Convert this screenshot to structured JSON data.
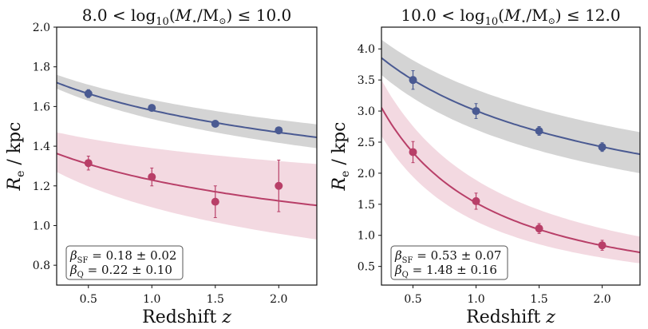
{
  "chart_data": [
    {
      "type": "line",
      "title": {
        "prefix": "8.0 < log",
        "sub": "10",
        "mid": "(",
        "m": "M",
        "star": "⋆",
        "rest": "/M",
        "sun": "⊙",
        "end": ") ≤ 10.0"
      },
      "xlabel": {
        "text": "Redshift ",
        "var": "z"
      },
      "ylabel": {
        "var": "R",
        "sub": "e",
        "unit": " / kpc"
      },
      "xlim": [
        0.25,
        2.3
      ],
      "ylim": [
        0.7,
        2.0
      ],
      "xticks": [
        "0.5",
        "1.0",
        "1.5",
        "2.0"
      ],
      "yticks": [
        "0.8",
        "1.0",
        "1.2",
        "1.4",
        "1.6",
        "1.8",
        "2.0"
      ],
      "grid": false,
      "legend_placement": "bottom-left",
      "legend": [
        {
          "symbol": "β",
          "sub": "SF",
          "text": " = 0.18 ± 0.02"
        },
        {
          "symbol": "β",
          "sub": "Q",
          "text": " = 0.22 ± 0.10"
        }
      ],
      "series": [
        {
          "group": "SF",
          "color": "#4a5a92",
          "band_color": "#d4d4d4",
          "fit": {
            "A": 1.791,
            "beta": 0.18
          },
          "band": {
            "x": [
              0.25,
              2.3
            ],
            "lower": [
              1.69,
              1.39
            ],
            "upper": [
              1.76,
              1.51
            ]
          },
          "x": [
            0.5,
            1.0,
            1.5,
            2.0
          ],
          "y": [
            1.665,
            1.593,
            1.513,
            1.48
          ],
          "yerr": [
            0.02,
            0.01,
            0.01,
            0.01
          ]
        },
        {
          "group": "Q",
          "color": "#b83f68",
          "band_color": "#f3d9e1",
          "fit": {
            "A": 1.432,
            "beta": 0.22
          },
          "band": {
            "x": [
              0.25,
              2.3
            ],
            "lower": [
              1.27,
              0.93
            ],
            "upper": [
              1.47,
              1.31
            ]
          },
          "x": [
            0.5,
            1.0,
            1.5,
            2.0
          ],
          "y": [
            1.315,
            1.245,
            1.12,
            1.2
          ],
          "yerr": [
            0.035,
            0.045,
            0.08,
            0.13
          ]
        }
      ]
    },
    {
      "type": "line",
      "title": {
        "prefix": "10.0 < log",
        "sub": "10",
        "mid": "(",
        "m": "M",
        "star": "⋆",
        "rest": "/M",
        "sun": "⊙",
        "end": ") ≤ 12.0"
      },
      "xlabel": {
        "text": "Redshift ",
        "var": "z"
      },
      "ylabel": {
        "var": "R",
        "sub": "e",
        "unit": " / kpc"
      },
      "xlim": [
        0.25,
        2.3
      ],
      "ylim": [
        0.2,
        4.35
      ],
      "xticks": [
        "0.5",
        "1.0",
        "1.5",
        "2.0"
      ],
      "yticks": [
        "0.5",
        "1.0",
        "1.5",
        "2.0",
        "2.5",
        "3.0",
        "3.5",
        "4.0"
      ],
      "grid": false,
      "legend_placement": "bottom-left",
      "legend": [
        {
          "symbol": "β",
          "sub": "SF",
          "text": " = 0.53 ± 0.07"
        },
        {
          "symbol": "β",
          "sub": "Q",
          "text": " = 1.48 ± 0.16"
        }
      ],
      "series": [
        {
          "group": "SF",
          "color": "#4a5a92",
          "band_color": "#d4d4d4",
          "fit": {
            "A": 4.34,
            "beta": 0.53
          },
          "band": {
            "x": [
              0.25,
              2.3
            ],
            "lower": [
              3.58,
              2.0
            ],
            "upper": [
              4.15,
              2.66
            ]
          },
          "x": [
            0.5,
            1.0,
            1.5,
            2.0
          ],
          "y": [
            3.5,
            3.0,
            2.68,
            2.42
          ],
          "yerr": [
            0.15,
            0.12,
            0.07,
            0.07
          ]
        },
        {
          "group": "Q",
          "color": "#b83f68",
          "band_color": "#f3d9e1",
          "fit": {
            "A": 4.25,
            "beta": 1.48
          },
          "band": {
            "x": [
              0.25,
              2.3
            ],
            "lower": [
              2.6,
              0.55
            ],
            "upper": [
              3.5,
              0.98
            ]
          },
          "x": [
            0.5,
            1.0,
            1.5,
            2.0
          ],
          "y": [
            2.34,
            1.55,
            1.11,
            0.84
          ],
          "yerr": [
            0.17,
            0.13,
            0.08,
            0.08
          ]
        }
      ]
    }
  ]
}
